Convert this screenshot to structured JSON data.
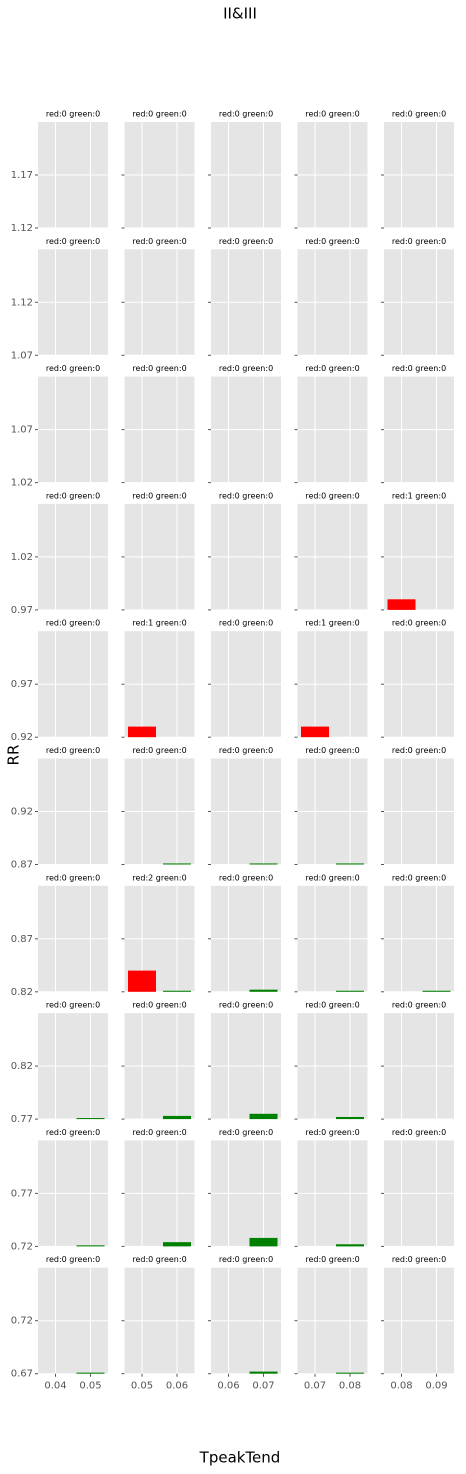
{
  "chart_data": {
    "type": "bar",
    "title": "II&III",
    "xlabel": "TpeakTend",
    "ylabel": "RR",
    "rows": [
      {
        "ylim": [
          1.12,
          1.22
        ],
        "yticks": [
          1.12,
          1.17
        ]
      },
      {
        "ylim": [
          1.07,
          1.17
        ],
        "yticks": [
          1.07,
          1.12
        ]
      },
      {
        "ylim": [
          1.02,
          1.12
        ],
        "yticks": [
          1.02,
          1.07
        ]
      },
      {
        "ylim": [
          0.97,
          1.07
        ],
        "yticks": [
          0.97,
          1.02
        ]
      },
      {
        "ylim": [
          0.92,
          1.02
        ],
        "yticks": [
          0.92,
          0.97
        ]
      },
      {
        "ylim": [
          0.87,
          0.97
        ],
        "yticks": [
          0.87,
          0.92
        ]
      },
      {
        "ylim": [
          0.82,
          0.92
        ],
        "yticks": [
          0.82,
          0.87
        ]
      },
      {
        "ylim": [
          0.77,
          0.87
        ],
        "yticks": [
          0.77,
          0.82
        ]
      },
      {
        "ylim": [
          0.72,
          0.82
        ],
        "yticks": [
          0.72,
          0.77
        ]
      },
      {
        "ylim": [
          0.67,
          0.77
        ],
        "yticks": [
          0.67,
          0.72
        ]
      }
    ],
    "cols": [
      {
        "xlim": [
          0.035,
          0.055
        ],
        "xticks": [
          0.04,
          0.05
        ]
      },
      {
        "xlim": [
          0.045,
          0.065
        ],
        "xticks": [
          0.05,
          0.06
        ]
      },
      {
        "xlim": [
          0.055,
          0.075
        ],
        "xticks": [
          0.06,
          0.07
        ]
      },
      {
        "xlim": [
          0.065,
          0.085
        ],
        "xticks": [
          0.07,
          0.08
        ]
      },
      {
        "xlim": [
          0.075,
          0.095
        ],
        "xticks": [
          0.08,
          0.09
        ]
      }
    ],
    "panels": [
      [
        {
          "title": "red:0 green:0",
          "bars": []
        },
        {
          "title": "red:0 green:0",
          "bars": []
        },
        {
          "title": "red:0 green:0",
          "bars": []
        },
        {
          "title": "red:0 green:0",
          "bars": []
        },
        {
          "title": "red:0 green:0",
          "bars": []
        }
      ],
      [
        {
          "title": "red:0 green:0",
          "bars": []
        },
        {
          "title": "red:0 green:0",
          "bars": []
        },
        {
          "title": "red:0 green:0",
          "bars": []
        },
        {
          "title": "red:0 green:0",
          "bars": []
        },
        {
          "title": "red:0 green:0",
          "bars": []
        }
      ],
      [
        {
          "title": "red:0 green:0",
          "bars": []
        },
        {
          "title": "red:0 green:0",
          "bars": []
        },
        {
          "title": "red:0 green:0",
          "bars": []
        },
        {
          "title": "red:0 green:0",
          "bars": []
        },
        {
          "title": "red:0 green:0",
          "bars": []
        }
      ],
      [
        {
          "title": "red:0 green:0",
          "bars": []
        },
        {
          "title": "red:0 green:0",
          "bars": []
        },
        {
          "title": "red:0 green:0",
          "bars": []
        },
        {
          "title": "red:0 green:0",
          "bars": []
        },
        {
          "title": "red:1 green:0",
          "bars": [
            {
              "color": "#ff0000",
              "x": [
                0.076,
                0.084
              ],
              "y": 0.98
            }
          ]
        }
      ],
      [
        {
          "title": "red:0 green:0",
          "bars": []
        },
        {
          "title": "red:1 green:0",
          "bars": [
            {
              "color": "#ff0000",
              "x": [
                0.046,
                0.054
              ],
              "y": 0.93
            }
          ]
        },
        {
          "title": "red:0 green:0",
          "bars": []
        },
        {
          "title": "red:1 green:0",
          "bars": [
            {
              "color": "#ff0000",
              "x": [
                0.066,
                0.074
              ],
              "y": 0.93
            }
          ]
        },
        {
          "title": "red:0 green:0",
          "bars": []
        }
      ],
      [
        {
          "title": "red:0 green:0",
          "bars": []
        },
        {
          "title": "red:0 green:0",
          "bars": [
            {
              "color": "#008000",
              "x": [
                0.056,
                0.064
              ],
              "y": 0.871
            }
          ]
        },
        {
          "title": "red:0 green:0",
          "bars": [
            {
              "color": "#008000",
              "x": [
                0.066,
                0.074
              ],
              "y": 0.871
            }
          ]
        },
        {
          "title": "red:0 green:0",
          "bars": [
            {
              "color": "#008000",
              "x": [
                0.076,
                0.084
              ],
              "y": 0.871
            }
          ]
        },
        {
          "title": "red:0 green:0",
          "bars": []
        }
      ],
      [
        {
          "title": "red:0 green:0",
          "bars": []
        },
        {
          "title": "red:2 green:0",
          "bars": [
            {
              "color": "#ff0000",
              "x": [
                0.046,
                0.054
              ],
              "y": 0.84
            },
            {
              "color": "#008000",
              "x": [
                0.056,
                0.064
              ],
              "y": 0.821
            }
          ]
        },
        {
          "title": "red:0 green:0",
          "bars": [
            {
              "color": "#008000",
              "x": [
                0.066,
                0.074
              ],
              "y": 0.822
            }
          ]
        },
        {
          "title": "red:0 green:0",
          "bars": [
            {
              "color": "#008000",
              "x": [
                0.076,
                0.084
              ],
              "y": 0.821
            }
          ]
        },
        {
          "title": "red:0 green:0",
          "bars": [
            {
              "color": "#008000",
              "x": [
                0.086,
                0.094
              ],
              "y": 0.821
            }
          ]
        }
      ],
      [
        {
          "title": "red:0 green:0",
          "bars": [
            {
              "color": "#008000",
              "x": [
                0.046,
                0.054
              ],
              "y": 0.771
            }
          ]
        },
        {
          "title": "red:0 green:0",
          "bars": [
            {
              "color": "#008000",
              "x": [
                0.056,
                0.064
              ],
              "y": 0.773
            }
          ]
        },
        {
          "title": "red:0 green:0",
          "bars": [
            {
              "color": "#008000",
              "x": [
                0.066,
                0.074
              ],
              "y": 0.775
            }
          ]
        },
        {
          "title": "red:0 green:0",
          "bars": [
            {
              "color": "#008000",
              "x": [
                0.076,
                0.084
              ],
              "y": 0.772
            }
          ]
        },
        {
          "title": "red:0 green:0",
          "bars": []
        }
      ],
      [
        {
          "title": "red:0 green:0",
          "bars": [
            {
              "color": "#008000",
              "x": [
                0.046,
                0.054
              ],
              "y": 0.721
            }
          ]
        },
        {
          "title": "red:0 green:0",
          "bars": [
            {
              "color": "#008000",
              "x": [
                0.056,
                0.064
              ],
              "y": 0.724
            }
          ]
        },
        {
          "title": "red:0 green:0",
          "bars": [
            {
              "color": "#008000",
              "x": [
                0.066,
                0.074
              ],
              "y": 0.728
            }
          ]
        },
        {
          "title": "red:0 green:0",
          "bars": [
            {
              "color": "#008000",
              "x": [
                0.076,
                0.084
              ],
              "y": 0.722
            }
          ]
        },
        {
          "title": "red:0 green:0",
          "bars": []
        }
      ],
      [
        {
          "title": "red:0 green:0",
          "bars": [
            {
              "color": "#008000",
              "x": [
                0.046,
                0.054
              ],
              "y": 0.671
            }
          ]
        },
        {
          "title": "red:0 green:0",
          "bars": []
        },
        {
          "title": "red:0 green:0",
          "bars": [
            {
              "color": "#008000",
              "x": [
                0.066,
                0.074
              ],
              "y": 0.672
            }
          ]
        },
        {
          "title": "red:0 green:0",
          "bars": [
            {
              "color": "#008000",
              "x": [
                0.076,
                0.084
              ],
              "y": 0.671
            }
          ]
        },
        {
          "title": "red:0 green:0",
          "bars": []
        }
      ]
    ]
  }
}
